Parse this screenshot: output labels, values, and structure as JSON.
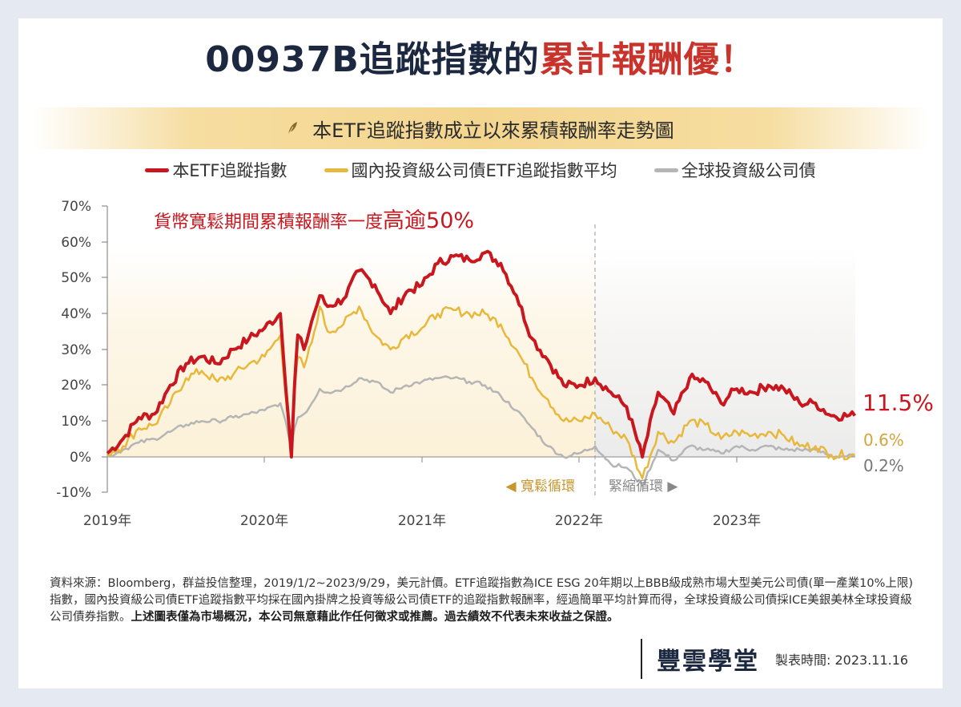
{
  "title": {
    "main": "00937B追蹤指數的",
    "highlight": "累計報酬優！"
  },
  "banner": {
    "icon": "leaf-icon",
    "text": "本ETF追蹤指數成立以來累積報酬率走勢圖"
  },
  "legend": [
    {
      "label": "本ETF追蹤指數",
      "color": "#c8171e"
    },
    {
      "label": "國內投資級公司債ETF追蹤指數平均",
      "color": "#e8b83c"
    },
    {
      "label": "全球投資級公司債",
      "color": "#b5b5b5"
    }
  ],
  "annotation": {
    "text": "貨幣寬鬆期間累積報酬率一度",
    "emph": "高逾50%"
  },
  "cycles": {
    "easing": "◀ 寬鬆循環",
    "tightening": "緊縮循環 ▶",
    "easing_color": "#c9962e",
    "tightening_color": "#888888"
  },
  "end_labels": {
    "red": "11.5%",
    "gold": "0.6%",
    "grey": "0.2%"
  },
  "chart_data": {
    "type": "line",
    "title": "本ETF追蹤指數成立以來累積報酬率走勢圖",
    "xlabel": "",
    "ylabel": "",
    "ylim": [
      -10,
      70
    ],
    "yticks": [
      "70%",
      "60%",
      "50%",
      "40%",
      "30%",
      "20%",
      "10%",
      "0%",
      "-10%"
    ],
    "xticks": [
      "2019年",
      "2020年",
      "2021年",
      "2022年",
      "2023年"
    ],
    "grid": false,
    "legend_position": "top",
    "x": [
      2019.0,
      2019.1,
      2019.2,
      2019.3,
      2019.4,
      2019.5,
      2019.6,
      2019.7,
      2019.8,
      2019.9,
      2020.0,
      2020.1,
      2020.17,
      2020.19,
      2020.21,
      2020.25,
      2020.3,
      2020.35,
      2020.4,
      2020.5,
      2020.6,
      2020.7,
      2020.8,
      2020.9,
      2021.0,
      2021.1,
      2021.2,
      2021.3,
      2021.4,
      2021.5,
      2021.6,
      2021.7,
      2021.8,
      2021.9,
      2022.0,
      2022.1,
      2022.2,
      2022.3,
      2022.4,
      2022.5,
      2022.6,
      2022.7,
      2022.8,
      2022.9,
      2023.0,
      2023.1,
      2023.2,
      2023.3,
      2023.4,
      2023.5,
      2023.6,
      2023.75
    ],
    "series": [
      {
        "name": "本ETF追蹤指數",
        "color": "#c8171e",
        "values": [
          1,
          5,
          11,
          12,
          20,
          26,
          28,
          26,
          30,
          33,
          36,
          40,
          0,
          20,
          34,
          30,
          38,
          45,
          42,
          44,
          52,
          48,
          40,
          46,
          48,
          54,
          56,
          55,
          57,
          54,
          45,
          33,
          27,
          20,
          20,
          22,
          18,
          14,
          0,
          18,
          12,
          22,
          21,
          15,
          19,
          18,
          20,
          19,
          15,
          15,
          11.5,
          11.5
        ]
      },
      {
        "name": "國內投資級公司債ETF追蹤指數平均",
        "color": "#e8b83c",
        "values": [
          1,
          3,
          8,
          9,
          15,
          22,
          24,
          21,
          23,
          26,
          28,
          34,
          0,
          18,
          28,
          25,
          32,
          42,
          35,
          37,
          42,
          34,
          30,
          34,
          36,
          40,
          41,
          40,
          40,
          37,
          30,
          22,
          16,
          10,
          10,
          12,
          8,
          5,
          -6,
          7,
          4,
          10,
          9,
          5,
          7,
          6,
          7,
          6,
          3,
          3,
          0.6,
          0.6
        ]
      },
      {
        "name": "全球投資級公司債",
        "color": "#b5b5b5",
        "values": [
          0,
          2,
          4,
          5,
          7,
          9,
          10,
          10,
          11,
          12,
          13,
          15,
          3,
          8,
          11,
          12,
          15,
          19,
          18,
          19,
          22,
          21,
          18,
          20,
          21,
          22,
          22,
          21,
          20,
          17,
          13,
          8,
          3,
          0,
          1,
          3,
          -2,
          -3,
          -8,
          2,
          -1,
          3,
          2,
          1,
          3,
          2,
          3,
          2,
          2,
          2,
          0.2,
          0.2
        ]
      }
    ],
    "annotations": [
      "貨幣寬鬆期間累積報酬率一度高逾50%",
      "◀ 寬鬆循環",
      "緊縮循環 ▶"
    ],
    "end_values": {
      "本ETF追蹤指數": "11.5%",
      "國內投資級公司債ETF追蹤指數平均": "0.6%",
      "全球投資級公司債": "0.2%"
    },
    "divider_at": "2022 (start of tightening cycle)"
  },
  "footnote": {
    "normal": "資料來源：Bloomberg，群益投信整理，2019/1/2~2023/9/29，美元計價。ETF追蹤指數為ICE ESG 20年期以上BBB級成熟市場大型美元公司債(單一產業10%上限)指數，國內投資級公司債ETF追蹤指數平均採在國內掛牌之投資等級公司債ETF的追蹤指數報酬率，經過簡單平均計算而得，全球投資級公司債採ICE美銀美林全球投資級公司債券指數。",
    "bold": "上述圖表僅為市場概況，本公司無意藉此作任何徵求或推薦。過去績效不代表未來收益之保證。"
  },
  "brand": {
    "logo": "豐雲學堂",
    "made_label": "製表時間:",
    "made_date": "2023.11.16"
  }
}
